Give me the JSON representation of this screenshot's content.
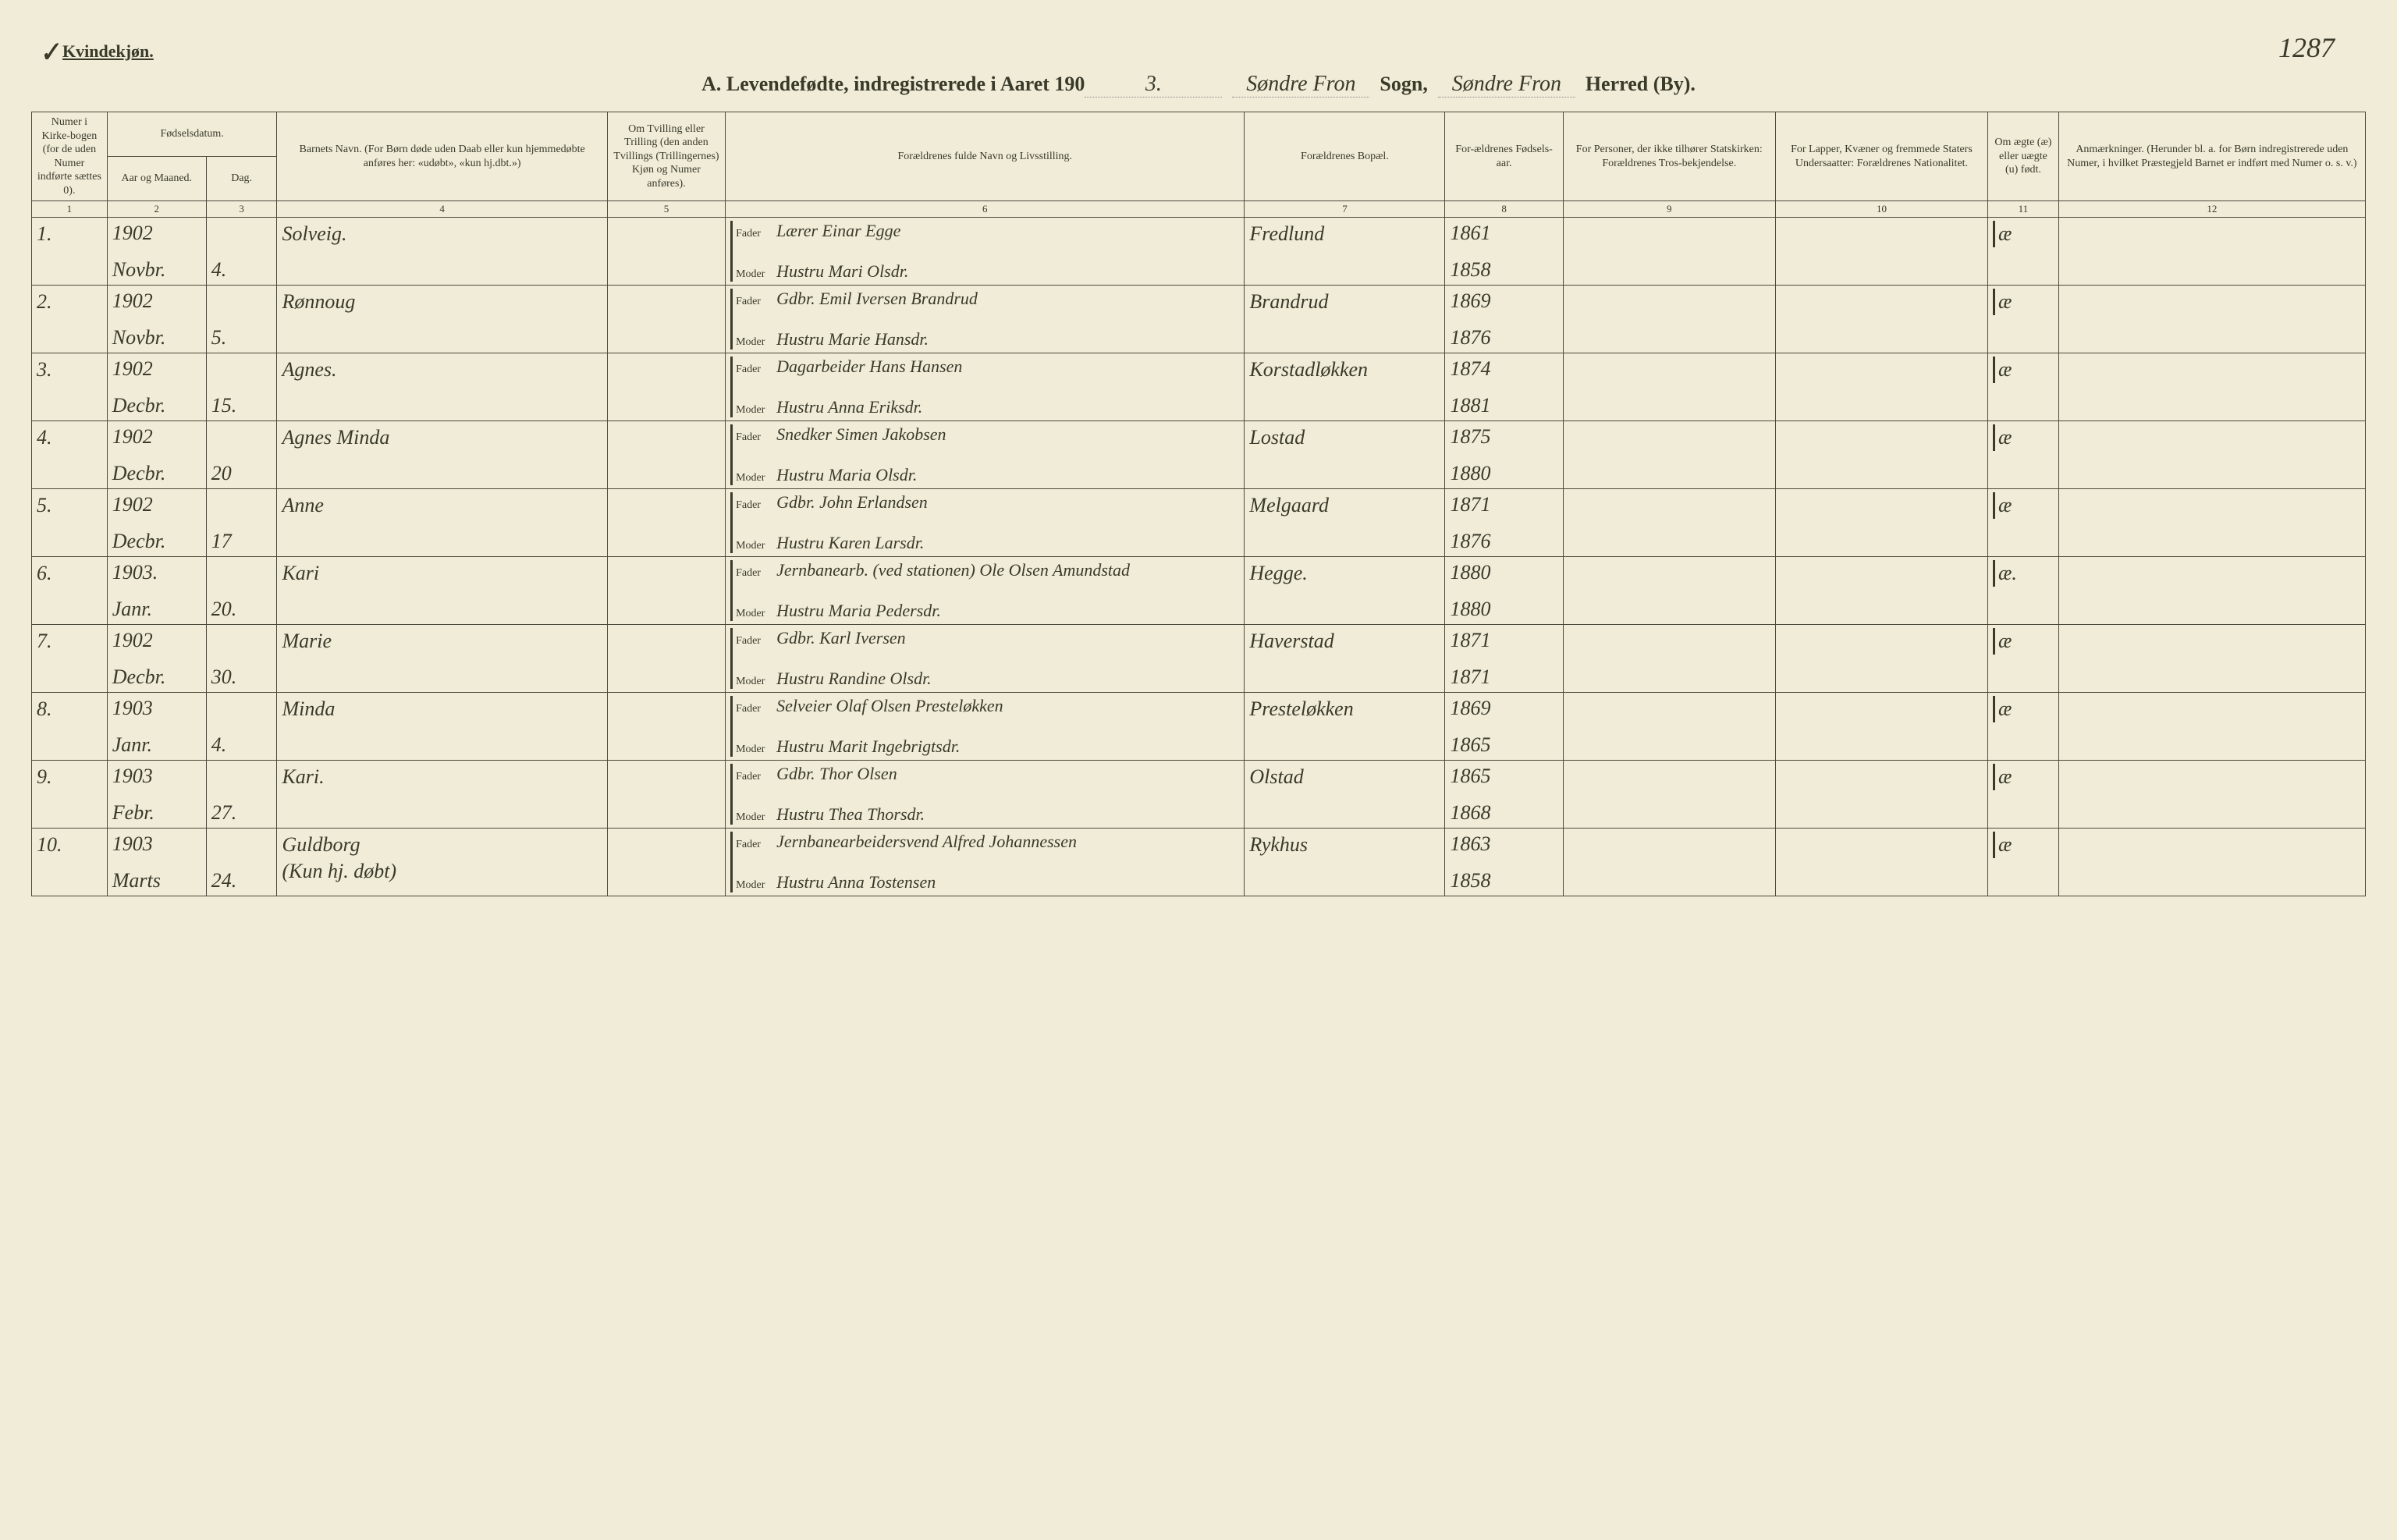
{
  "page": {
    "gender_label": "Kvindekjøn.",
    "checkmark": "✓",
    "page_number": "1287",
    "title_prefix": "A.  Levendefødte, indregistrerede i Aaret 190",
    "year_suffix": "3.",
    "sogn_label": "Sogn,",
    "sogn_value": "Søndre Fron",
    "herred_label": "Herred (By).",
    "herred_value": "Søndre Fron"
  },
  "headers": {
    "c1": "Numer i Kirke-bogen (for de uden Numer indførte sættes 0).",
    "c2": "Fødselsdatum.",
    "c2a": "Aar og Maaned.",
    "c2b": "Dag.",
    "c3": "Barnets Navn.\n(For Børn døde uden Daab eller kun hjemmedøbte anføres her: «udøbt», «kun hj.dbt.»)",
    "c4": "Om Tvilling eller Trilling (den anden Tvillings (Trillingernes) Kjøn og Numer anføres).",
    "c5": "Forældrenes fulde Navn og Livsstilling.",
    "c6": "Forældrenes Bopæl.",
    "c7": "For-ældrenes Fødsels-aar.",
    "c8": "For Personer, der ikke tilhører Statskirken: Forældrenes Tros-bekjendelse.",
    "c9": "For Lapper, Kvæner og fremmede Staters Undersaatter: Forældrenes Nationalitet.",
    "c10": "Om ægte (æ) eller uægte (u) født.",
    "c11": "Anmærkninger.\n(Herunder bl. a. for Børn indregistrerede uden Numer, i hvilket Præstegjeld Barnet er indført med Numer o. s. v.)"
  },
  "colnums": [
    "1",
    "2",
    "3",
    "4",
    "5",
    "6",
    "7",
    "8",
    "9",
    "10",
    "11",
    "12"
  ],
  "labels": {
    "fader": "Fader",
    "moder": "Moder"
  },
  "rows": [
    {
      "num": "1.",
      "year": "1902",
      "month": "Novbr.",
      "day": "4.",
      "name": "Solveig.",
      "fader": "Lærer Einar Egge",
      "moder": "Hustru Mari Olsdr.",
      "residence": "Fredlund",
      "fy": "1861",
      "my": "1858",
      "legit": "æ"
    },
    {
      "num": "2.",
      "year": "1902",
      "month": "Novbr.",
      "day": "5.",
      "name": "Rønnoug",
      "fader": "Gdbr. Emil Iversen Brandrud",
      "moder": "Hustru Marie Hansdr.",
      "residence": "Brandrud",
      "fy": "1869",
      "my": "1876",
      "legit": "æ"
    },
    {
      "num": "3.",
      "year": "1902",
      "month": "Decbr.",
      "day": "15.",
      "name": "Agnes.",
      "fader": "Dagarbeider Hans Hansen",
      "moder": "Hustru Anna Eriksdr.",
      "residence": "Korstadløkken",
      "fy": "1874",
      "my": "1881",
      "legit": "æ"
    },
    {
      "num": "4.",
      "year": "1902",
      "month": "Decbr.",
      "day": "20",
      "name": "Agnes Minda",
      "fader": "Snedker Simen Jakobsen",
      "moder": "Hustru Maria Olsdr.",
      "residence": "Lostad",
      "fy": "1875",
      "my": "1880",
      "legit": "æ"
    },
    {
      "num": "5.",
      "year": "1902",
      "month": "Decbr.",
      "day": "17",
      "name": "Anne",
      "fader": "Gdbr. John Erlandsen",
      "moder": "Hustru Karen Larsdr.",
      "residence": "Melgaard",
      "fy": "1871",
      "my": "1876",
      "legit": "æ"
    },
    {
      "num": "6.",
      "year": "1903.",
      "month": "Janr.",
      "day": "20.",
      "name": "Kari",
      "fader": "Jernbanearb. (ved stationen) Ole Olsen Amundstad",
      "moder": "Hustru Maria Pedersdr.",
      "residence": "Hegge.",
      "fy": "1880",
      "my": "1880",
      "legit": "æ."
    },
    {
      "num": "7.",
      "year": "1902",
      "month": "Decbr.",
      "day": "30.",
      "name": "Marie",
      "fader": "Gdbr. Karl Iversen",
      "moder": "Hustru Randine Olsdr.",
      "residence": "Haverstad",
      "fy": "1871",
      "my": "1871",
      "legit": "æ"
    },
    {
      "num": "8.",
      "year": "1903",
      "month": "Janr.",
      "day": "4.",
      "name": "Minda",
      "fader": "Selveier Olaf Olsen Presteløkken",
      "moder": "Hustru Marit Ingebrigtsdr.",
      "residence": "Presteløkken",
      "fy": "1869",
      "my": "1865",
      "legit": "æ"
    },
    {
      "num": "9.",
      "year": "1903",
      "month": "Febr.",
      "day": "27.",
      "name": "Kari.",
      "fader": "Gdbr. Thor Olsen",
      "moder": "Hustru Thea Thorsdr.",
      "residence": "Olstad",
      "fy": "1865",
      "my": "1868",
      "legit": "æ"
    },
    {
      "num": "10.",
      "year": "1903",
      "month": "Marts",
      "day": "24.",
      "name": "Guldborg\n(Kun hj. døbt)",
      "fader": "Jernbanearbeidersvend Alfred Johannessen",
      "moder": "Hustru Anna Tostensen",
      "residence": "Rykhus",
      "fy": "1863",
      "my": "1858",
      "legit": "æ"
    }
  ]
}
